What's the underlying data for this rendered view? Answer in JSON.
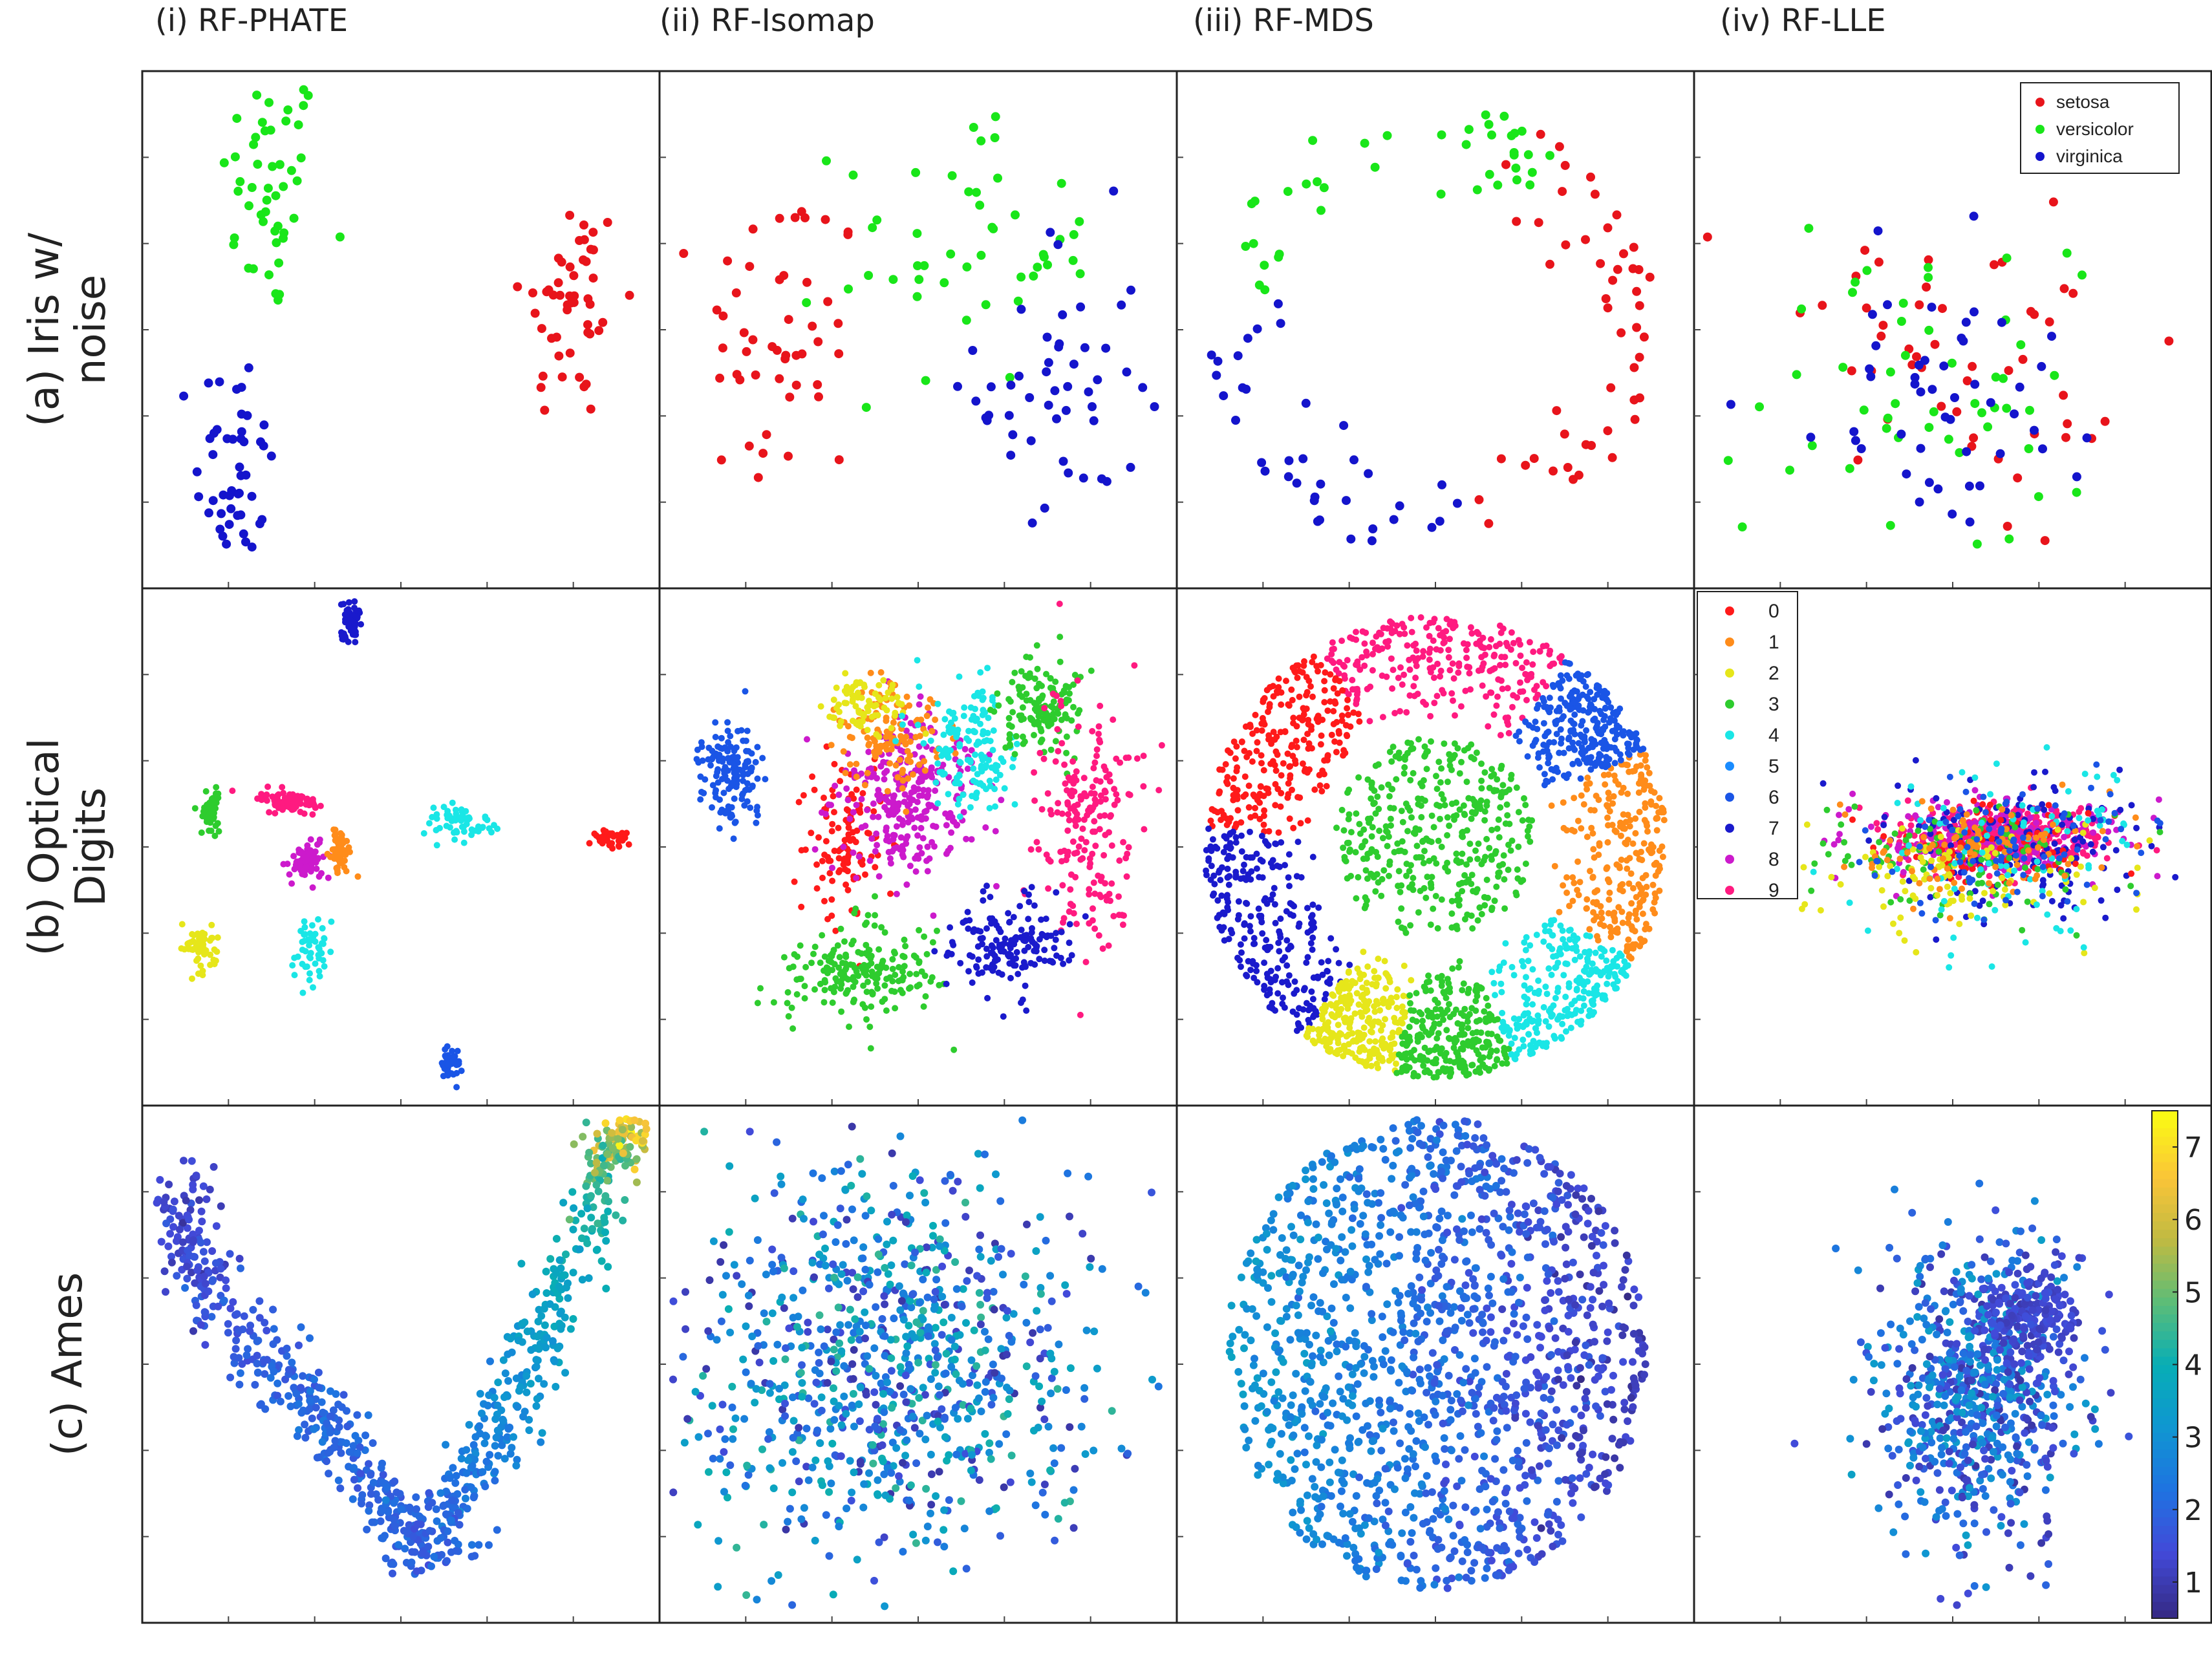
{
  "figure": {
    "column_titles": [
      "(i) RF-PHATE",
      "(ii) RF-Isomap",
      "(iii) RF-MDS",
      "(iv) RF-LLE"
    ],
    "row_titles": [
      [
        "(a) Iris w/",
        "noise"
      ],
      [
        "(b) Optical",
        "Digits"
      ],
      [
        "(c) Ames"
      ]
    ]
  },
  "chart_data": [
    {
      "row": "(a) Iris w/ noise",
      "type": "scatter",
      "legend": {
        "position": "top-right",
        "panel": "(iv) RF-LLE",
        "entries": [
          "setosa",
          "versicolor",
          "virginica"
        ]
      },
      "class_colors": {
        "setosa": "#e8141b",
        "versicolor": "#19e619",
        "virginica": "#1414cc"
      },
      "panels": [
        {
          "name": "(i) RF-PHATE",
          "xlim": [
            0,
            1
          ],
          "ylim": [
            0,
            1
          ],
          "clusters": [
            {
              "label": "versicolor",
              "cx": 0.24,
              "cy": 0.78,
              "sx": 0.05,
              "sy": 0.13,
              "n": 50
            },
            {
              "label": "virginica",
              "cx": 0.17,
              "cy": 0.22,
              "sx": 0.04,
              "sy": 0.13,
              "n": 50
            },
            {
              "label": "setosa",
              "cx": 0.84,
              "cy": 0.55,
              "sx": 0.05,
              "sy": 0.12,
              "n": 50
            }
          ]
        },
        {
          "name": "(ii) RF-Isomap",
          "xlim": [
            0,
            1
          ],
          "ylim": [
            0,
            1
          ],
          "clusters": [
            {
              "label": "setosa",
              "cx": 0.23,
              "cy": 0.48,
              "sx": 0.08,
              "sy": 0.17,
              "n": 50
            },
            {
              "label": "versicolor",
              "cx": 0.6,
              "cy": 0.67,
              "sx": 0.13,
              "sy": 0.14,
              "n": 50
            },
            {
              "label": "virginica",
              "cx": 0.78,
              "cy": 0.38,
              "sx": 0.08,
              "sy": 0.17,
              "n": 50
            }
          ]
        },
        {
          "name": "(iii) RF-MDS",
          "xlim": [
            0,
            1
          ],
          "ylim": [
            0,
            1
          ],
          "shape": "ring",
          "ring": {
            "cx": 0.5,
            "cy": 0.5,
            "r": 0.45
          },
          "arcs_deg": {
            "setosa": [
              -80,
              70
            ],
            "versicolor": [
              50,
              170
            ],
            "virginica": [
              170,
              280
            ]
          }
        },
        {
          "name": "(iv) RF-LLE",
          "xlim": [
            0,
            1
          ],
          "ylim": [
            0,
            1
          ],
          "clusters": [
            {
              "label": "setosa",
              "cx": 0.5,
              "cy": 0.42,
              "sx": 0.17,
              "sy": 0.18,
              "n": 50
            },
            {
              "label": "versicolor",
              "cx": 0.43,
              "cy": 0.4,
              "sx": 0.15,
              "sy": 0.14,
              "n": 50
            },
            {
              "label": "virginica",
              "cx": 0.47,
              "cy": 0.38,
              "sx": 0.15,
              "sy": 0.18,
              "n": 50
            }
          ]
        }
      ]
    },
    {
      "row": "(b) Optical Digits",
      "type": "scatter",
      "legend": {
        "position": "top-left",
        "panel": "(iv) RF-LLE",
        "entries": [
          "0",
          "1",
          "2",
          "3",
          "4",
          "5",
          "6",
          "7",
          "8",
          "9"
        ]
      },
      "class_colors": {
        "0": "#ff1a1a",
        "1": "#ff8c1a",
        "2": "#e6e61a",
        "3": "#2ecc2e",
        "4": "#1ae6e6",
        "5": "#1a8cff",
        "6": "#1a55e6",
        "7": "#1a1acc",
        "8": "#cc1acc",
        "9": "#ff1a80"
      },
      "panels": [
        {
          "name": "(i) RF-PHATE",
          "xlim": [
            0,
            1
          ],
          "ylim": [
            0,
            1
          ],
          "clusters": [
            {
              "label": "7",
              "cx": 0.4,
              "cy": 0.95,
              "sx": 0.01,
              "sy": 0.02,
              "n": 60
            },
            {
              "label": "9",
              "cx": 0.28,
              "cy": 0.59,
              "sx": 0.03,
              "sy": 0.01,
              "n": 80
            },
            {
              "label": "3",
              "cx": 0.12,
              "cy": 0.57,
              "sx": 0.01,
              "sy": 0.02,
              "n": 60
            },
            {
              "label": "4",
              "cx": 0.62,
              "cy": 0.55,
              "sx": 0.03,
              "sy": 0.02,
              "n": 60
            },
            {
              "label": "8",
              "cx": 0.31,
              "cy": 0.47,
              "sx": 0.02,
              "sy": 0.02,
              "n": 70
            },
            {
              "label": "1",
              "cx": 0.38,
              "cy": 0.49,
              "sx": 0.01,
              "sy": 0.02,
              "n": 60
            },
            {
              "label": "0",
              "cx": 0.92,
              "cy": 0.52,
              "sx": 0.02,
              "sy": 0.01,
              "n": 40
            },
            {
              "label": "2",
              "cx": 0.1,
              "cy": 0.3,
              "sx": 0.02,
              "sy": 0.02,
              "n": 60
            },
            {
              "label": "4",
              "cx": 0.32,
              "cy": 0.3,
              "sx": 0.02,
              "sy": 0.04,
              "n": 50
            },
            {
              "label": "6",
              "cx": 0.6,
              "cy": 0.07,
              "sx": 0.01,
              "sy": 0.02,
              "n": 40
            }
          ]
        },
        {
          "name": "(ii) RF-Isomap",
          "xlim": [
            0,
            1
          ],
          "ylim": [
            0,
            1
          ],
          "clusters": [
            {
              "label": "6",
              "cx": 0.13,
              "cy": 0.65,
              "sx": 0.03,
              "sy": 0.05,
              "n": 150
            },
            {
              "label": "0",
              "cx": 0.36,
              "cy": 0.52,
              "sx": 0.04,
              "sy": 0.08,
              "n": 120
            },
            {
              "label": "8",
              "cx": 0.48,
              "cy": 0.6,
              "sx": 0.07,
              "sy": 0.08,
              "n": 280
            },
            {
              "label": "1",
              "cx": 0.45,
              "cy": 0.72,
              "sx": 0.05,
              "sy": 0.05,
              "n": 120
            },
            {
              "label": "2",
              "cx": 0.4,
              "cy": 0.78,
              "sx": 0.04,
              "sy": 0.03,
              "n": 80
            },
            {
              "label": "4",
              "cx": 0.6,
              "cy": 0.7,
              "sx": 0.05,
              "sy": 0.06,
              "n": 150
            },
            {
              "label": "3",
              "cx": 0.75,
              "cy": 0.78,
              "sx": 0.04,
              "sy": 0.05,
              "n": 150
            },
            {
              "label": "9",
              "cx": 0.84,
              "cy": 0.55,
              "sx": 0.05,
              "sy": 0.12,
              "n": 200
            },
            {
              "label": "3",
              "cx": 0.38,
              "cy": 0.25,
              "sx": 0.08,
              "sy": 0.05,
              "n": 200
            },
            {
              "label": "7",
              "cx": 0.68,
              "cy": 0.3,
              "sx": 0.06,
              "sy": 0.05,
              "n": 160
            }
          ]
        },
        {
          "name": "(iii) RF-MDS",
          "xlim": [
            0,
            1
          ],
          "ylim": [
            0,
            1
          ],
          "shape": "disk",
          "disk": {
            "cx": 0.5,
            "cy": 0.5,
            "r": 0.46
          },
          "sectors": [
            {
              "label": "9",
              "a0": 55,
              "a1": 120
            },
            {
              "label": "0",
              "a0": 120,
              "a1": 175
            },
            {
              "label": "7",
              "a0": 175,
              "a1": 235
            },
            {
              "label": "2",
              "a0": 235,
              "a1": 260
            },
            {
              "label": "3",
              "a0": 260,
              "a1": 290
            },
            {
              "label": "4",
              "a0": 290,
              "a1": 330
            },
            {
              "label": "1",
              "a0": 330,
              "a1": 385
            },
            {
              "label": "6",
              "a0": 25,
              "a1": 55
            }
          ],
          "core": {
            "label": "3",
            "cx": 0.5,
            "cy": 0.52,
            "r": 0.2
          }
        },
        {
          "name": "(iv) RF-LLE",
          "xlim": [
            0,
            1
          ],
          "ylim": [
            0,
            1
          ],
          "clusters": [
            {
              "label": "9",
              "cx": 0.6,
              "cy": 0.52,
              "sx": 0.1,
              "sy": 0.03,
              "n": 350
            },
            {
              "label": "8",
              "cx": 0.6,
              "cy": 0.52,
              "sx": 0.12,
              "sy": 0.04,
              "n": 200
            },
            {
              "label": "7",
              "cx": 0.62,
              "cy": 0.5,
              "sx": 0.14,
              "sy": 0.07,
              "n": 150
            },
            {
              "label": "0",
              "cx": 0.58,
              "cy": 0.5,
              "sx": 0.1,
              "sy": 0.04,
              "n": 80
            },
            {
              "label": "3",
              "cx": 0.5,
              "cy": 0.48,
              "sx": 0.16,
              "sy": 0.05,
              "n": 100
            },
            {
              "label": "2",
              "cx": 0.52,
              "cy": 0.45,
              "sx": 0.16,
              "sy": 0.05,
              "n": 100
            },
            {
              "label": "4",
              "cx": 0.6,
              "cy": 0.5,
              "sx": 0.16,
              "sy": 0.1,
              "n": 90
            },
            {
              "label": "1",
              "cx": 0.55,
              "cy": 0.5,
              "sx": 0.14,
              "sy": 0.05,
              "n": 90
            },
            {
              "label": "6",
              "cx": 0.6,
              "cy": 0.5,
              "sx": 0.15,
              "sy": 0.06,
              "n": 80
            }
          ]
        }
      ]
    },
    {
      "row": "(c) Ames",
      "type": "scatter",
      "colorbar": {
        "position": "right",
        "ticks": [
          "1",
          "2",
          "3",
          "4",
          "5",
          "6",
          "7"
        ],
        "range": [
          0.5,
          7.5
        ],
        "colormap": "parula"
      },
      "panels": [
        {
          "name": "(i) RF-PHATE",
          "xlim": [
            0,
            1
          ],
          "ylim": [
            0,
            1
          ],
          "shape": "curve",
          "curve_points": [
            [
              0.05,
              0.85
            ],
            [
              0.12,
              0.65
            ],
            [
              0.3,
              0.45
            ],
            [
              0.45,
              0.25
            ],
            [
              0.55,
              0.12
            ],
            [
              0.68,
              0.35
            ],
            [
              0.8,
              0.6
            ],
            [
              0.92,
              0.9
            ],
            [
              0.95,
              0.98
            ]
          ],
          "value_along_curve": [
            1.2,
            1.5,
            2.0,
            2.0,
            1.8,
            2.6,
            3.5,
            4.5,
            7.0
          ],
          "n": 900
        },
        {
          "name": "(ii) RF-Isomap",
          "xlim": [
            0,
            1
          ],
          "ylim": [
            0,
            1
          ],
          "clusters": [
            {
              "cx": 0.45,
              "cy": 0.5,
              "sx": 0.2,
              "sy": 0.2,
              "n": 900,
              "value_range": [
                0.8,
                4.5
              ]
            }
          ]
        },
        {
          "name": "(iii) RF-MDS",
          "xlim": [
            0,
            1
          ],
          "ylim": [
            0,
            1
          ],
          "shape": "ellipse",
          "ellipse": {
            "cx": 0.5,
            "cy": 0.52,
            "rx": 0.42,
            "ry": 0.47
          },
          "value_gradient": {
            "left": 3.2,
            "right": 1.0
          },
          "n": 1400
        },
        {
          "name": "(iv) RF-LLE",
          "xlim": [
            0,
            1
          ],
          "ylim": [
            0,
            1
          ],
          "clusters": [
            {
              "cx": 0.55,
              "cy": 0.45,
              "sx": 0.1,
              "sy": 0.14,
              "n": 700,
              "value_range": [
                0.8,
                3.5
              ]
            },
            {
              "cx": 0.65,
              "cy": 0.6,
              "sx": 0.05,
              "sy": 0.05,
              "n": 200,
              "value_range": [
                1.0,
                1.6
              ]
            }
          ]
        }
      ]
    }
  ]
}
